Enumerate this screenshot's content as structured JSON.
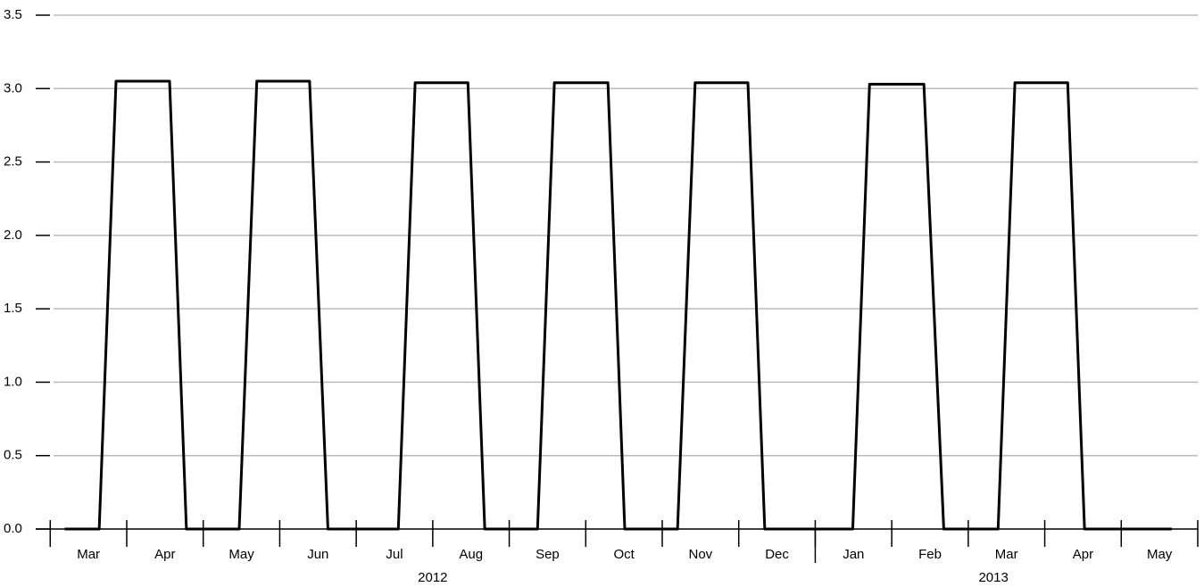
{
  "chart_data": {
    "type": "line",
    "x": [
      0.19,
      0.64,
      0.86,
      1.56,
      1.78,
      2.47,
      2.7,
      3.39,
      3.63,
      4.55,
      4.77,
      5.46,
      5.68,
      6.37,
      6.59,
      7.29,
      7.51,
      8.2,
      8.43,
      9.12,
      9.34,
      10.49,
      10.71,
      11.42,
      11.68,
      12.39,
      12.61,
      13.3,
      13.52,
      14.66
    ],
    "series": [
      {
        "color": "#000000",
        "values": [
          0,
          0,
          3.05,
          3.05,
          0,
          0,
          3.05,
          3.05,
          0,
          0,
          3.04,
          3.04,
          0,
          0,
          3.04,
          3.04,
          0,
          0,
          3.04,
          3.04,
          0,
          0,
          3.03,
          3.03,
          0,
          0,
          3.04,
          3.04,
          0,
          0
        ]
      }
    ],
    "xlim": [
      -0.19,
      15
    ],
    "x_boundaries": [
      0,
      1,
      2,
      3,
      4,
      5,
      6,
      7,
      8,
      9,
      10,
      11,
      12,
      13,
      14,
      15
    ],
    "year_boundaries": [
      10
    ],
    "xticks": [
      {
        "value": 0.5,
        "label": "Mar"
      },
      {
        "value": 1.5,
        "label": "Apr"
      },
      {
        "value": 2.5,
        "label": "May"
      },
      {
        "value": 3.5,
        "label": "Jun"
      },
      {
        "value": 4.5,
        "label": "Jul"
      },
      {
        "value": 5.5,
        "label": "Aug"
      },
      {
        "value": 6.5,
        "label": "Sep"
      },
      {
        "value": 7.5,
        "label": "Oct"
      },
      {
        "value": 8.5,
        "label": "Nov"
      },
      {
        "value": 9.5,
        "label": "Dec"
      },
      {
        "value": 10.5,
        "label": "Jan"
      },
      {
        "value": 11.5,
        "label": "Feb"
      },
      {
        "value": 12.5,
        "label": "Mar"
      },
      {
        "value": 13.5,
        "label": "Apr"
      },
      {
        "value": 14.5,
        "label": "May"
      }
    ],
    "year_ticks": [
      {
        "value": 5,
        "label": "2012"
      },
      {
        "value": 12.33,
        "label": "2013"
      }
    ],
    "ylim": [
      0,
      3.5
    ],
    "yticks": [
      {
        "value": 0,
        "label": "0.0"
      },
      {
        "value": 0.5,
        "label": "0.5"
      },
      {
        "value": 1,
        "label": "1.0"
      },
      {
        "value": 1.5,
        "label": "1.5"
      },
      {
        "value": 2,
        "label": "2.0"
      },
      {
        "value": 2.5,
        "label": "2.5"
      },
      {
        "value": 3,
        "label": "3.0"
      },
      {
        "value": 3.5,
        "label": "3.5"
      }
    ],
    "grid": true
  }
}
